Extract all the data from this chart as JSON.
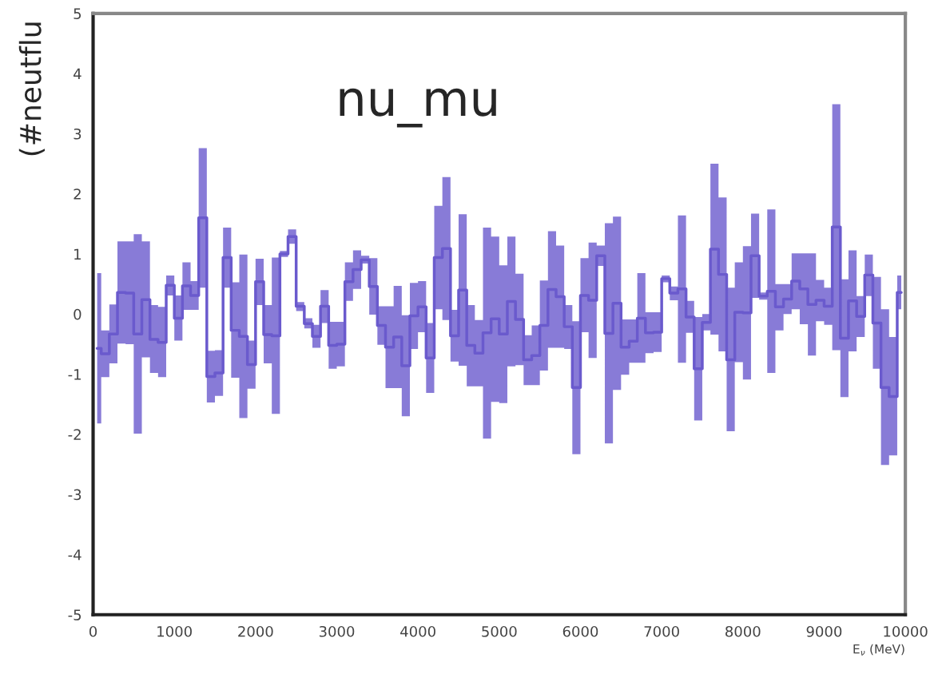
{
  "chart_data": {
    "type": "step",
    "title": "nu_mu",
    "xlabel": "E$_{ν}$ (MeV)",
    "ylabel": "(#neutflu",
    "x": [
      50,
      150,
      250,
      350,
      450,
      550,
      650,
      750,
      850,
      950,
      1050,
      1150,
      1250,
      1350,
      1450,
      1550,
      1650,
      1750,
      1850,
      1950,
      2050,
      2150,
      2250,
      2350,
      2450,
      2550,
      2650,
      2750,
      2850,
      2950,
      3050,
      3150,
      3250,
      3350,
      3450,
      3550,
      3650,
      3750,
      3850,
      3950,
      4050,
      4150,
      4250,
      4350,
      4450,
      4550,
      4650,
      4750,
      4850,
      4950,
      5050,
      5150,
      5250,
      5350,
      5450,
      5550,
      5650,
      5750,
      5850,
      5950,
      6050,
      6150,
      6250,
      6350,
      6450,
      6550,
      6650,
      6750,
      6850,
      6950,
      7050,
      7150,
      7250,
      7350,
      7450,
      7550,
      7650,
      7750,
      7850,
      7950,
      8050,
      8150,
      8250,
      8350,
      8450,
      8550,
      8650,
      8750,
      8850,
      8950,
      9050,
      9150,
      9250,
      9350,
      9450,
      9550,
      9650,
      9750,
      9850,
      9950
    ],
    "series": [
      {
        "color": "#6a5acd",
        "values": [
          -0.57,
          -0.66,
          -0.33,
          0.36,
          0.35,
          -0.33,
          0.24,
          -0.42,
          -0.47,
          0.48,
          -0.07,
          0.47,
          0.31,
          1.6,
          -1.04,
          -0.98,
          0.94,
          -0.27,
          -0.37,
          -0.84,
          0.54,
          -0.34,
          -0.36,
          1.0,
          1.29,
          0.13,
          -0.16,
          -0.37,
          0.13,
          -0.52,
          -0.5,
          0.54,
          0.74,
          0.9,
          0.46,
          -0.19,
          -0.55,
          -0.38,
          -0.86,
          -0.03,
          0.12,
          -0.73,
          0.94,
          1.09,
          -0.36,
          0.4,
          -0.52,
          -0.65,
          -0.31,
          -0.08,
          -0.33,
          0.21,
          -0.09,
          -0.76,
          -0.69,
          -0.19,
          0.41,
          0.29,
          -0.21,
          -1.22,
          0.31,
          0.23,
          0.97,
          -0.32,
          0.18,
          -0.55,
          -0.45,
          -0.07,
          -0.31,
          -0.3,
          0.59,
          0.35,
          0.42,
          -0.05,
          -0.91,
          -0.14,
          1.08,
          0.66,
          -0.76,
          0.03,
          0.02,
          0.97,
          0.3,
          0.38,
          0.12,
          0.25,
          0.55,
          0.42,
          0.16,
          0.23,
          0.13,
          1.45,
          -0.4,
          0.22,
          -0.04,
          0.65,
          -0.15,
          -1.22,
          -1.37,
          0.36
        ],
        "upper": [
          0.68,
          -0.27,
          0.16,
          1.21,
          1.21,
          1.33,
          1.21,
          0.15,
          0.12,
          0.64,
          0.31,
          0.86,
          0.55,
          2.76,
          -0.61,
          -0.6,
          1.44,
          0.53,
          0.99,
          -0.44,
          0.92,
          0.15,
          0.94,
          1.05,
          1.41,
          0.2,
          -0.07,
          -0.18,
          0.4,
          -0.13,
          -0.13,
          0.86,
          1.06,
          0.97,
          0.93,
          0.13,
          0.13,
          0.47,
          -0.02,
          0.52,
          0.55,
          -0.15,
          1.8,
          2.28,
          0.07,
          1.66,
          0.15,
          -0.1,
          1.44,
          1.29,
          0.81,
          1.29,
          0.67,
          -0.35,
          -0.19,
          0.56,
          1.38,
          1.14,
          0.15,
          -0.12,
          0.93,
          1.19,
          1.14,
          1.51,
          1.62,
          -0.09,
          -0.09,
          0.68,
          0.03,
          0.03,
          0.64,
          0.46,
          1.64,
          0.22,
          -0.05,
          0.0,
          2.5,
          1.94,
          0.44,
          0.86,
          1.13,
          1.67,
          0.36,
          1.74,
          0.5,
          0.5,
          1.01,
          1.01,
          1.01,
          0.57,
          0.44,
          3.49,
          0.58,
          1.06,
          0.3,
          0.99,
          0.62,
          0.08,
          -0.38,
          0.64
        ],
        "lower": [
          -1.82,
          -1.05,
          -0.82,
          -0.49,
          -0.5,
          -1.99,
          -0.72,
          -0.98,
          -1.05,
          0.31,
          -0.44,
          0.07,
          0.07,
          0.44,
          -1.47,
          -1.36,
          0.44,
          -1.06,
          -1.73,
          -1.24,
          0.15,
          -0.82,
          -1.66,
          0.95,
          1.17,
          0.05,
          -0.24,
          -0.56,
          -0.15,
          -0.91,
          -0.87,
          0.22,
          0.42,
          0.84,
          -0.01,
          -0.51,
          -1.23,
          -1.23,
          -1.7,
          -0.58,
          -0.3,
          -1.31,
          0.08,
          -0.1,
          -0.79,
          -0.86,
          -1.2,
          -1.2,
          -2.07,
          -1.46,
          -1.48,
          -0.87,
          -0.85,
          -1.18,
          -1.18,
          -0.94,
          -0.56,
          -0.56,
          -0.58,
          -2.33,
          -0.3,
          -0.73,
          0.8,
          -2.15,
          -1.26,
          -1.01,
          -0.81,
          -0.81,
          -0.65,
          -0.63,
          0.53,
          0.23,
          -0.81,
          -0.31,
          -1.77,
          -0.27,
          -0.34,
          -0.62,
          -1.95,
          -0.8,
          -1.09,
          0.27,
          0.24,
          -0.98,
          -0.27,
          0.0,
          0.08,
          -0.17,
          -0.69,
          -0.12,
          -0.18,
          -0.6,
          -1.38,
          -0.62,
          -0.38,
          0.3,
          -0.91,
          -2.51,
          -2.35,
          0.08
        ]
      }
    ],
    "xlim": [
      0,
      10000
    ],
    "xticks": [
      0,
      1000,
      2000,
      3000,
      4000,
      5000,
      6000,
      7000,
      8000,
      9000,
      10000
    ],
    "ylim": [
      -5,
      5
    ],
    "yticks": [
      -5,
      -4,
      -3,
      -2,
      -1,
      0,
      1,
      2,
      3,
      4,
      5
    ],
    "grid": false,
    "legend": false
  }
}
